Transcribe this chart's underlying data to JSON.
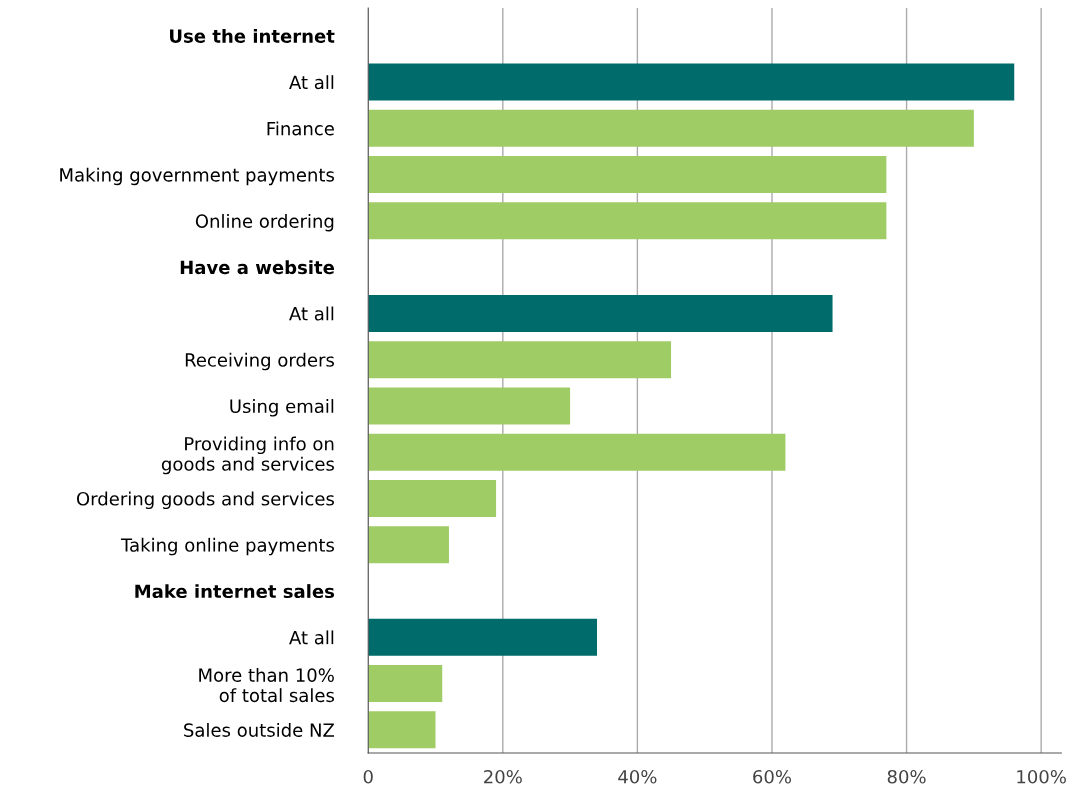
{
  "chart_data": {
    "type": "bar",
    "orientation": "horizontal",
    "categories": [
      "Use the internet",
      "At all",
      "Finance",
      "Making government payments",
      "Online ordering",
      "Have a website",
      "At all",
      "Receiving orders",
      "Using email",
      "Providing info on\ngoods and services",
      "Ordering goods and services",
      "Taking online payments",
      "Make internet sales",
      "At all",
      "More than 10%\nof total sales",
      "Sales outside NZ"
    ],
    "values": [
      null,
      96,
      90,
      77,
      77,
      null,
      69,
      45,
      30,
      62,
      19,
      12,
      null,
      34,
      11,
      10
    ],
    "colors": [
      null,
      "#006b6b",
      "#a0cc66",
      "#a0cc66",
      "#a0cc66",
      null,
      "#006b6b",
      "#a0cc66",
      "#a0cc66",
      "#a0cc66",
      "#a0cc66",
      "#a0cc66",
      null,
      "#006b6b",
      "#a0cc66",
      "#a0cc66"
    ],
    "xlim": [
      0,
      103
    ],
    "xticks": [
      0,
      {
        "value": 20,
        "label": "20%"
      },
      {
        "value": 40,
        "label": "40%"
      },
      {
        "value": 60,
        "label": "60%"
      },
      {
        "value": 80,
        "label": "80%"
      },
      {
        "value": 100,
        "label": "100%"
      }
    ],
    "grid": "x"
  }
}
